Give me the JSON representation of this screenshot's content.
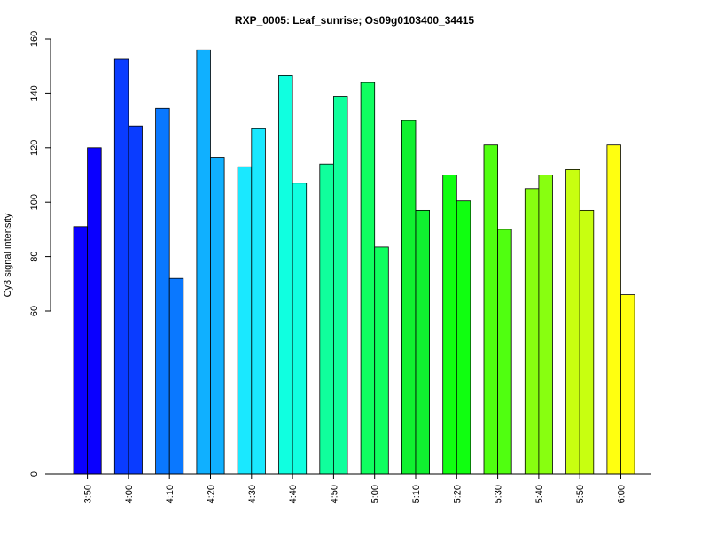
{
  "chart_data": {
    "type": "bar",
    "title": "RXP_0005: Leaf_sunrise; Os09g0103400_34415",
    "xlabel": "",
    "ylabel": "Cy3 signal intensity",
    "categories": [
      "3:50",
      "4:00",
      "4:10",
      "4:20",
      "4:30",
      "4:40",
      "4:50",
      "5:00",
      "5:10",
      "5:20",
      "5:30",
      "5:40",
      "5:50",
      "6:00"
    ],
    "colors": [
      "#0a00ff",
      "#0a3cff",
      "#0a78ff",
      "#10b0ff",
      "#1ae8ff",
      "#10ffe0",
      "#10ff9c",
      "#10ff60",
      "#10f030",
      "#10ff10",
      "#50ff10",
      "#88ff10",
      "#c8ff10",
      "#ffff10"
    ],
    "series": [
      {
        "values": [
          91,
          152.5,
          134.5,
          156,
          113,
          146.5,
          114,
          144,
          130,
          110,
          121,
          105,
          112,
          121
        ]
      },
      {
        "values": [
          120,
          128,
          72,
          116.5,
          127,
          107,
          139,
          83.5,
          97,
          100.5,
          90,
          110,
          97,
          66
        ]
      }
    ],
    "yticks": [
      0,
      60,
      80,
      100,
      120,
      140,
      160
    ],
    "ylim": [
      0,
      160
    ],
    "axis_break": "between 0 and 60",
    "grid": false,
    "legend": "none",
    "xtick_orientation": "vertical"
  }
}
